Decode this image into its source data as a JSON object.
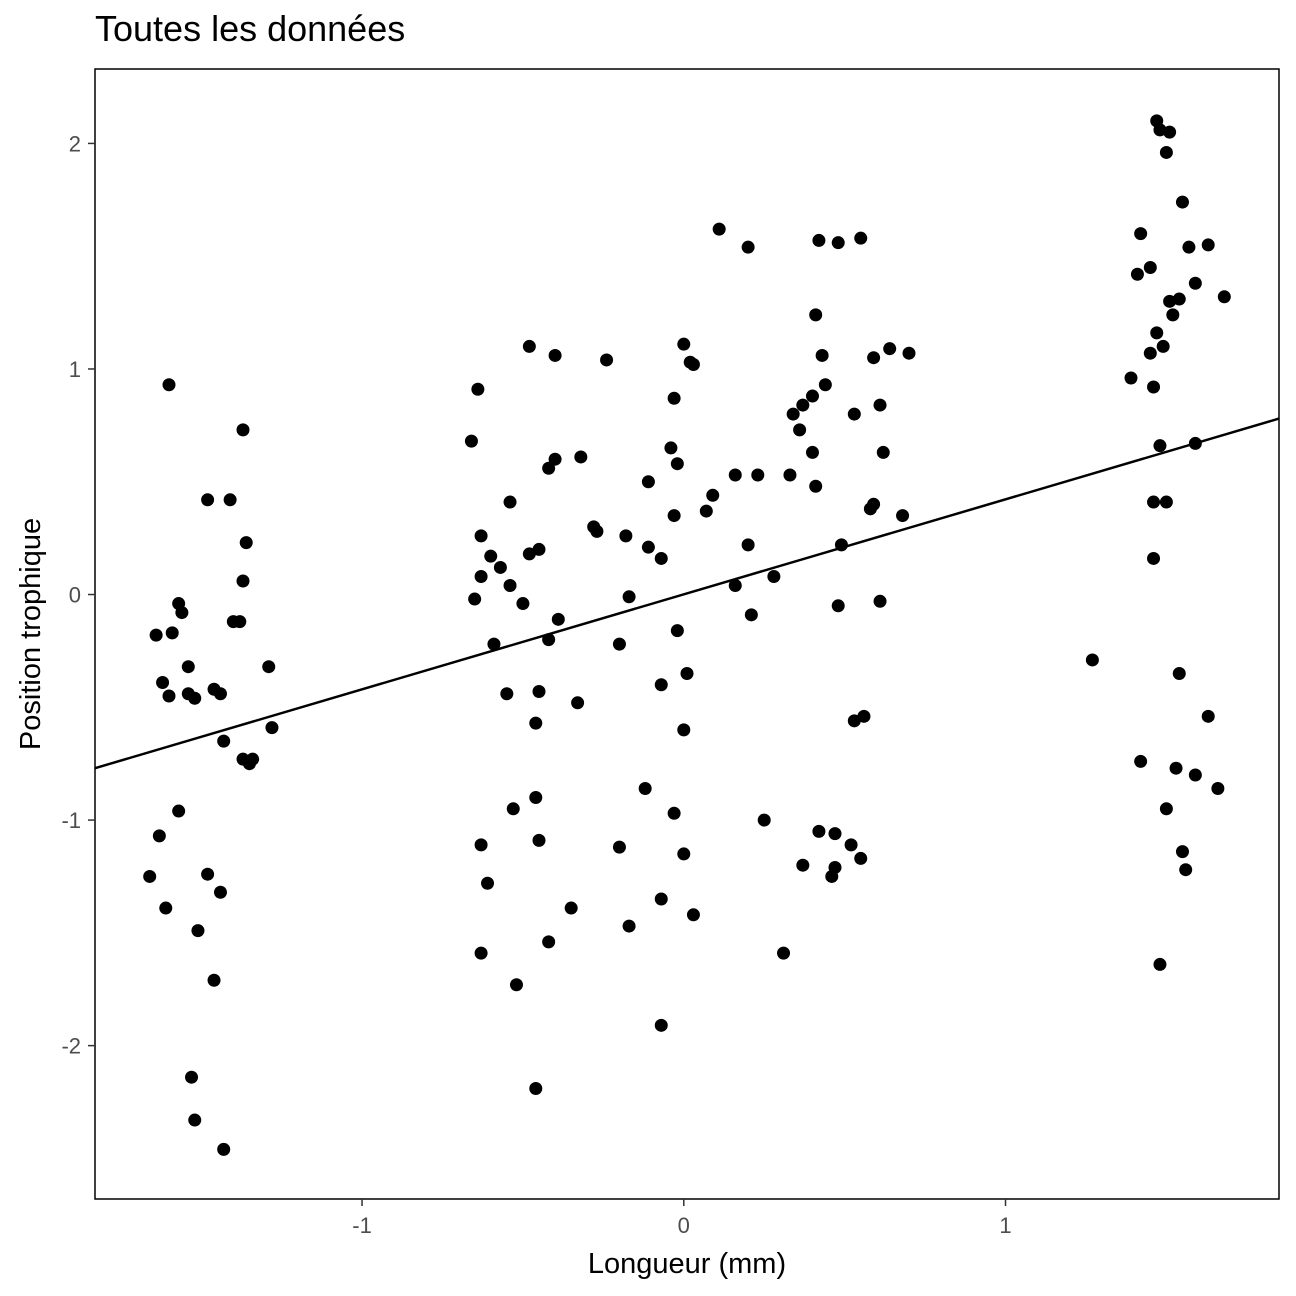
{
  "chart_data": {
    "type": "scatter",
    "title": "Toutes les données",
    "xlabel": "Longueur (mm)",
    "ylabel": "Position trophique",
    "xlim": [
      -1.83,
      1.85
    ],
    "ylim": [
      -2.68,
      2.33
    ],
    "xticks": [
      -1,
      0,
      1
    ],
    "xtick_labels": [
      "-1",
      "0",
      "1"
    ],
    "yticks": [
      -2,
      -1,
      0,
      1,
      2
    ],
    "ytick_labels": [
      "-2",
      "-1",
      "0",
      "1",
      "2"
    ],
    "grid": false,
    "legend": "none",
    "point_color": "#000000",
    "fit_line": {
      "x": [
        -1.83,
        1.85
      ],
      "y": [
        -0.77,
        0.78
      ]
    },
    "points": [
      [
        -1.6,
        0.93
      ],
      [
        -1.37,
        0.73
      ],
      [
        -1.48,
        0.42
      ],
      [
        -1.41,
        0.42
      ],
      [
        -1.36,
        0.23
      ],
      [
        -1.37,
        0.06
      ],
      [
        -1.57,
        -0.04
      ],
      [
        -1.64,
        -0.18
      ],
      [
        -1.59,
        -0.17
      ],
      [
        -1.56,
        -0.08
      ],
      [
        -1.4,
        -0.12
      ],
      [
        -1.38,
        -0.12
      ],
      [
        -1.29,
        -0.32
      ],
      [
        -1.62,
        -0.39
      ],
      [
        -1.6,
        -0.45
      ],
      [
        -1.54,
        -0.32
      ],
      [
        -1.54,
        -0.44
      ],
      [
        -1.52,
        -0.46
      ],
      [
        -1.46,
        -0.42
      ],
      [
        -1.44,
        -0.44
      ],
      [
        -1.43,
        -0.65
      ],
      [
        -1.28,
        -0.59
      ],
      [
        -1.37,
        -0.73
      ],
      [
        -1.34,
        -0.73
      ],
      [
        -1.35,
        -0.75
      ],
      [
        -1.57,
        -0.96
      ],
      [
        -1.63,
        -1.07
      ],
      [
        -1.66,
        -1.25
      ],
      [
        -1.61,
        -1.39
      ],
      [
        -1.48,
        -1.24
      ],
      [
        -1.44,
        -1.32
      ],
      [
        -1.51,
        -1.49
      ],
      [
        -1.46,
        -1.71
      ],
      [
        -1.53,
        -2.14
      ],
      [
        -1.52,
        -2.33
      ],
      [
        -1.43,
        -2.46
      ],
      [
        -0.66,
        0.68
      ],
      [
        -0.64,
        0.91
      ],
      [
        -0.48,
        1.1
      ],
      [
        -0.4,
        1.06
      ],
      [
        -0.24,
        1.04
      ],
      [
        -0.4,
        0.6
      ],
      [
        -0.42,
        0.56
      ],
      [
        -0.32,
        0.61
      ],
      [
        -0.54,
        0.41
      ],
      [
        -0.28,
        0.3
      ],
      [
        -0.27,
        0.28
      ],
      [
        -0.63,
        0.26
      ],
      [
        -0.45,
        0.2
      ],
      [
        -0.48,
        0.18
      ],
      [
        -0.6,
        0.17
      ],
      [
        -0.57,
        0.12
      ],
      [
        -0.63,
        0.08
      ],
      [
        -0.54,
        0.04
      ],
      [
        -0.65,
        -0.02
      ],
      [
        -0.5,
        -0.04
      ],
      [
        -0.39,
        -0.11
      ],
      [
        -0.59,
        -0.22
      ],
      [
        -0.42,
        -0.2
      ],
      [
        -0.55,
        -0.44
      ],
      [
        -0.45,
        -0.43
      ],
      [
        -0.46,
        -0.57
      ],
      [
        -0.33,
        -0.48
      ],
      [
        -0.46,
        -0.9
      ],
      [
        -0.53,
        -0.95
      ],
      [
        -0.45,
        -1.09
      ],
      [
        -0.63,
        -1.11
      ],
      [
        -0.61,
        -1.28
      ],
      [
        -0.35,
        -1.39
      ],
      [
        -0.42,
        -1.54
      ],
      [
        -0.63,
        -1.59
      ],
      [
        -0.52,
        -1.73
      ],
      [
        -0.46,
        -2.19
      ],
      [
        0.11,
        1.62
      ],
      [
        0.2,
        1.54
      ],
      [
        0.0,
        1.11
      ],
      [
        0.03,
        1.02
      ],
      [
        0.02,
        1.03
      ],
      [
        -0.03,
        0.87
      ],
      [
        -0.04,
        0.65
      ],
      [
        -0.02,
        0.58
      ],
      [
        -0.11,
        0.5
      ],
      [
        -0.03,
        0.35
      ],
      [
        0.09,
        0.44
      ],
      [
        0.07,
        0.37
      ],
      [
        0.16,
        0.53
      ],
      [
        0.23,
        0.53
      ],
      [
        -0.18,
        0.26
      ],
      [
        -0.11,
        0.21
      ],
      [
        -0.07,
        0.16
      ],
      [
        0.2,
        0.22
      ],
      [
        0.16,
        0.04
      ],
      [
        0.28,
        0.08
      ],
      [
        -0.17,
        -0.01
      ],
      [
        0.21,
        -0.09
      ],
      [
        -0.02,
        -0.16
      ],
      [
        -0.2,
        -0.22
      ],
      [
        0.01,
        -0.35
      ],
      [
        -0.07,
        -0.4
      ],
      [
        0.0,
        -0.6
      ],
      [
        -0.12,
        -0.86
      ],
      [
        -0.03,
        -0.97
      ],
      [
        -0.2,
        -1.12
      ],
      [
        0.0,
        -1.15
      ],
      [
        -0.07,
        -1.35
      ],
      [
        0.03,
        -1.42
      ],
      [
        -0.17,
        -1.47
      ],
      [
        0.25,
        -1.0
      ],
      [
        0.31,
        -1.59
      ],
      [
        -0.07,
        -1.91
      ],
      [
        0.42,
        1.57
      ],
      [
        0.48,
        1.56
      ],
      [
        0.55,
        1.58
      ],
      [
        0.41,
        1.24
      ],
      [
        0.43,
        1.06
      ],
      [
        0.59,
        1.05
      ],
      [
        0.64,
        1.09
      ],
      [
        0.7,
        1.07
      ],
      [
        0.44,
        0.93
      ],
      [
        0.4,
        0.88
      ],
      [
        0.37,
        0.84
      ],
      [
        0.34,
        0.8
      ],
      [
        0.53,
        0.8
      ],
      [
        0.61,
        0.84
      ],
      [
        0.36,
        0.73
      ],
      [
        0.4,
        0.63
      ],
      [
        0.62,
        0.63
      ],
      [
        0.33,
        0.53
      ],
      [
        0.41,
        0.48
      ],
      [
        0.58,
        0.38
      ],
      [
        0.59,
        0.4
      ],
      [
        0.68,
        0.35
      ],
      [
        0.49,
        0.22
      ],
      [
        0.48,
        -0.05
      ],
      [
        0.61,
        -0.03
      ],
      [
        0.53,
        -0.56
      ],
      [
        0.56,
        -0.54
      ],
      [
        0.42,
        -1.05
      ],
      [
        0.47,
        -1.06
      ],
      [
        0.52,
        -1.11
      ],
      [
        0.55,
        -1.17
      ],
      [
        0.37,
        -1.2
      ],
      [
        0.47,
        -1.21
      ],
      [
        0.46,
        -1.25
      ],
      [
        1.47,
        2.1
      ],
      [
        1.48,
        2.06
      ],
      [
        1.51,
        2.05
      ],
      [
        1.5,
        1.96
      ],
      [
        1.55,
        1.74
      ],
      [
        1.42,
        1.6
      ],
      [
        1.57,
        1.54
      ],
      [
        1.63,
        1.55
      ],
      [
        1.68,
        1.32
      ],
      [
        1.45,
        1.45
      ],
      [
        1.41,
        1.42
      ],
      [
        1.51,
        1.3
      ],
      [
        1.54,
        1.31
      ],
      [
        1.59,
        1.38
      ],
      [
        1.52,
        1.24
      ],
      [
        1.47,
        1.16
      ],
      [
        1.49,
        1.1
      ],
      [
        1.45,
        1.07
      ],
      [
        1.39,
        0.96
      ],
      [
        1.46,
        0.92
      ],
      [
        1.48,
        0.66
      ],
      [
        1.59,
        0.67
      ],
      [
        1.46,
        0.41
      ],
      [
        1.5,
        0.41
      ],
      [
        1.46,
        0.16
      ],
      [
        1.27,
        -0.29
      ],
      [
        1.54,
        -0.35
      ],
      [
        1.63,
        -0.54
      ],
      [
        1.42,
        -0.74
      ],
      [
        1.53,
        -0.77
      ],
      [
        1.59,
        -0.8
      ],
      [
        1.66,
        -0.86
      ],
      [
        1.5,
        -0.95
      ],
      [
        1.55,
        -1.14
      ],
      [
        1.56,
        -1.22
      ],
      [
        1.48,
        -1.64
      ]
    ]
  }
}
